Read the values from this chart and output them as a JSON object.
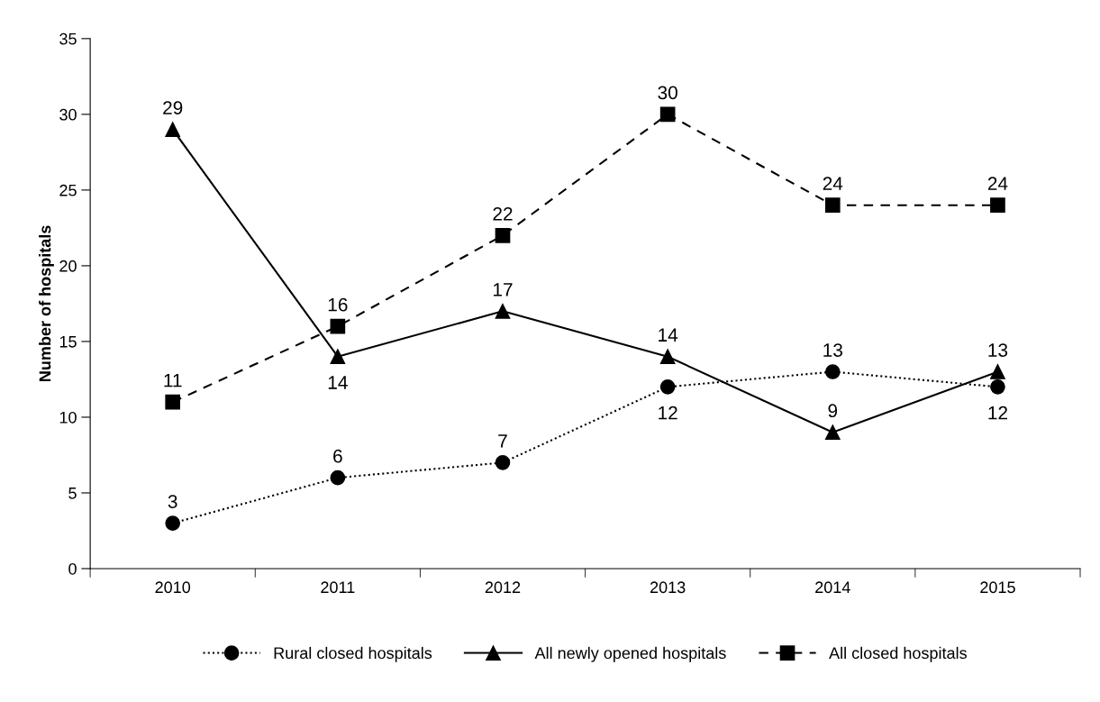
{
  "chart_data": {
    "type": "line",
    "ylabel": "Number of hospitals",
    "categories": [
      "2010",
      "2011",
      "2012",
      "2013",
      "2014",
      "2015"
    ],
    "series": [
      {
        "name": "Rural closed hospitals",
        "color": "#000000",
        "marker": "circle",
        "line_style": "dotted",
        "values": [
          3,
          6,
          7,
          12,
          13,
          12
        ]
      },
      {
        "name": "All newly opened hospitals",
        "color": "#000000",
        "marker": "triangle",
        "line_style": "solid",
        "values": [
          29,
          14,
          17,
          14,
          9,
          13
        ]
      },
      {
        "name": "All closed hospitals",
        "color": "#000000",
        "marker": "square",
        "line_style": "dashed",
        "values": [
          11,
          16,
          22,
          30,
          24,
          24
        ]
      }
    ],
    "ylim": [
      0,
      35
    ],
    "yticks": [
      0,
      5,
      10,
      15,
      20,
      25,
      30,
      35
    ],
    "data_labels": true,
    "grid": false,
    "legend": "bottom"
  }
}
